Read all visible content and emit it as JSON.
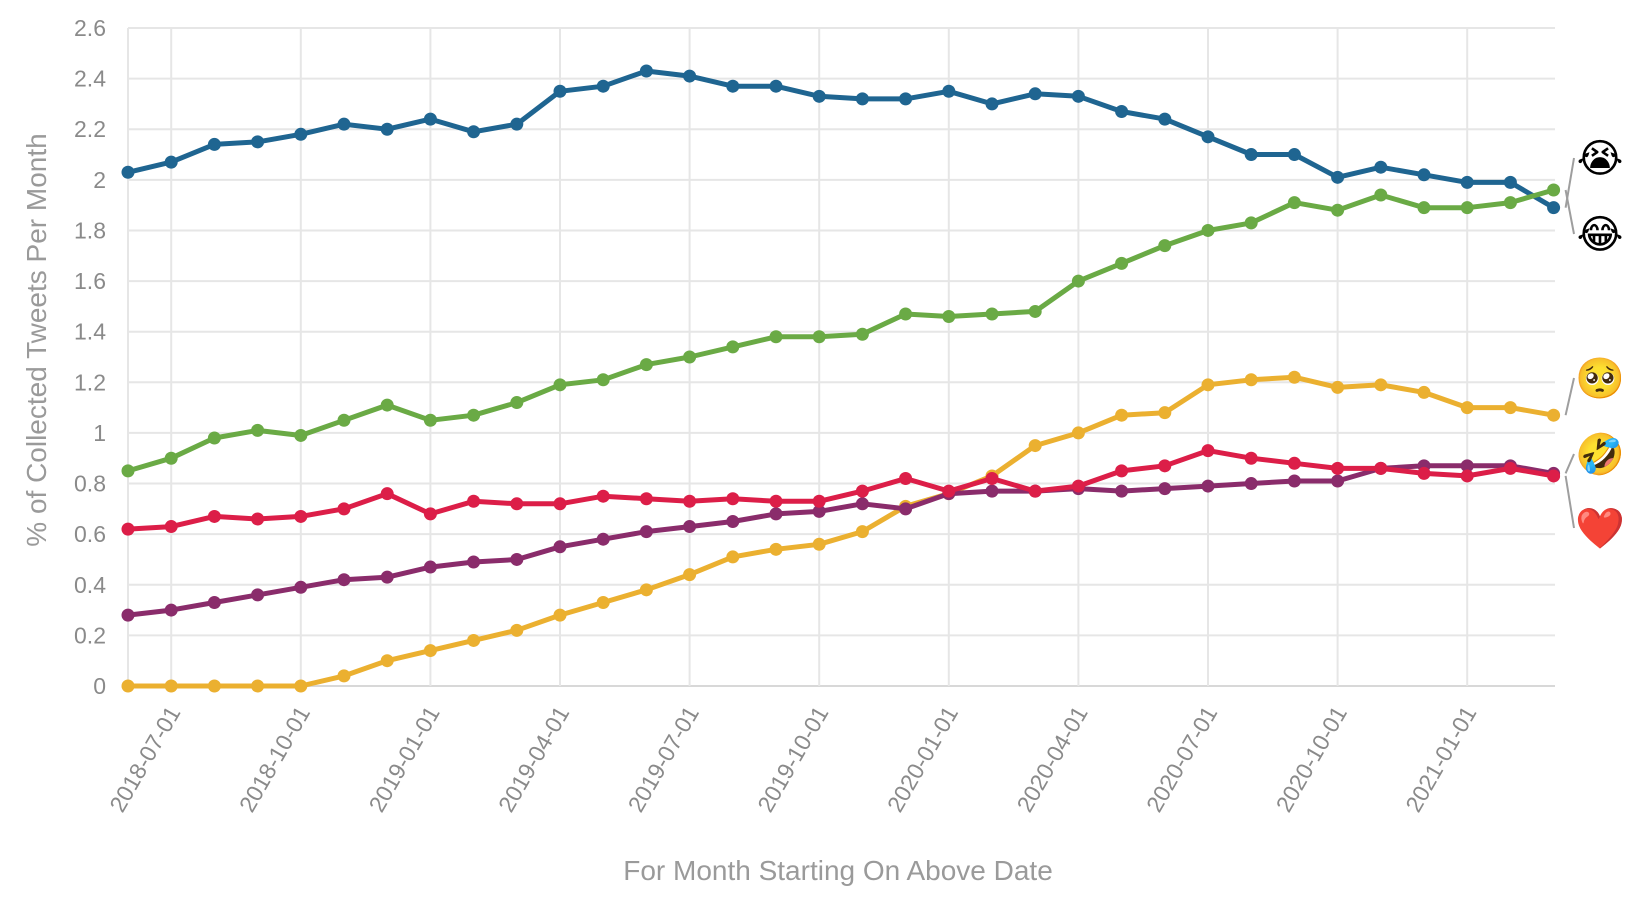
{
  "chart_data": {
    "type": "line",
    "title": "",
    "xlabel": "For Month Starting On Above Date",
    "ylabel": "% of Collected Tweets Per Month",
    "ylim": [
      0,
      2.6
    ],
    "yticks": [
      "0",
      "0.2",
      "0.4",
      "0.6",
      "0.8",
      "1",
      "1.2",
      "1.4",
      "1.6",
      "1.8",
      "2",
      "2.2",
      "2.4",
      "2.6"
    ],
    "xticks": [
      "2018-07-01",
      "2018-10-01",
      "2019-01-01",
      "2019-04-01",
      "2019-07-01",
      "2019-10-01",
      "2020-01-01",
      "2020-04-01",
      "2020-07-01",
      "2020-10-01",
      "2021-01-01"
    ],
    "grid": true,
    "legend": "emoji labels at right end of lines",
    "x": [
      "2018-06-01",
      "2018-07-01",
      "2018-08-01",
      "2018-09-01",
      "2018-10-01",
      "2018-11-01",
      "2018-12-01",
      "2019-01-01",
      "2019-02-01",
      "2019-03-01",
      "2019-04-01",
      "2019-05-01",
      "2019-06-01",
      "2019-07-01",
      "2019-08-01",
      "2019-09-01",
      "2019-10-01",
      "2019-11-01",
      "2019-12-01",
      "2020-01-01",
      "2020-02-01",
      "2020-03-01",
      "2020-04-01",
      "2020-05-01",
      "2020-06-01",
      "2020-07-01",
      "2020-08-01",
      "2020-09-01",
      "2020-10-01",
      "2020-11-01",
      "2020-12-01",
      "2021-01-01",
      "2021-02-01",
      "2021-03-01"
    ],
    "series": [
      {
        "name": "😭",
        "color": "#1f6591",
        "values": [
          2.03,
          2.07,
          2.14,
          2.15,
          2.18,
          2.22,
          2.2,
          2.24,
          2.19,
          2.22,
          2.35,
          2.37,
          2.43,
          2.41,
          2.37,
          2.37,
          2.33,
          2.32,
          2.32,
          2.35,
          2.3,
          2.34,
          2.33,
          2.27,
          2.24,
          2.17,
          2.1,
          2.1,
          2.01,
          2.05,
          2.02,
          1.99,
          1.99,
          1.89
        ]
      },
      {
        "name": "😂",
        "color": "#6aaa45",
        "values": [
          0.85,
          0.9,
          0.98,
          1.01,
          0.99,
          1.05,
          1.11,
          1.05,
          1.07,
          1.12,
          1.19,
          1.21,
          1.27,
          1.3,
          1.34,
          1.38,
          1.38,
          1.39,
          1.47,
          1.46,
          1.47,
          1.48,
          1.6,
          1.67,
          1.74,
          1.8,
          1.83,
          1.91,
          1.88,
          1.94,
          1.89,
          1.89,
          1.91,
          1.96
        ]
      },
      {
        "name": "🥺",
        "color": "#ebb030",
        "values": [
          0,
          0,
          0,
          0,
          0,
          0.04,
          0.1,
          0.14,
          0.18,
          0.22,
          0.28,
          0.33,
          0.38,
          0.44,
          0.51,
          0.54,
          0.56,
          0.61,
          0.71,
          0.76,
          0.83,
          0.95,
          1.0,
          1.07,
          1.08,
          1.19,
          1.21,
          1.22,
          1.18,
          1.19,
          1.16,
          1.1,
          1.1,
          1.07
        ]
      },
      {
        "name": "🤣",
        "color": "#8a2c6b",
        "values": [
          0.28,
          0.3,
          0.33,
          0.36,
          0.39,
          0.42,
          0.43,
          0.47,
          0.49,
          0.5,
          0.55,
          0.58,
          0.61,
          0.63,
          0.65,
          0.68,
          0.69,
          0.72,
          0.7,
          0.76,
          0.77,
          0.77,
          0.78,
          0.77,
          0.78,
          0.79,
          0.8,
          0.81,
          0.81,
          0.86,
          0.87,
          0.87,
          0.87,
          0.84
        ]
      },
      {
        "name": "❤️",
        "color": "#dc1e48",
        "values": [
          0.62,
          0.63,
          0.67,
          0.66,
          0.67,
          0.7,
          0.76,
          0.68,
          0.73,
          0.72,
          0.72,
          0.75,
          0.74,
          0.73,
          0.74,
          0.73,
          0.73,
          0.77,
          0.82,
          0.77,
          0.82,
          0.77,
          0.79,
          0.85,
          0.87,
          0.93,
          0.9,
          0.88,
          0.86,
          0.86,
          0.84,
          0.83,
          0.86,
          0.83
        ]
      }
    ]
  }
}
